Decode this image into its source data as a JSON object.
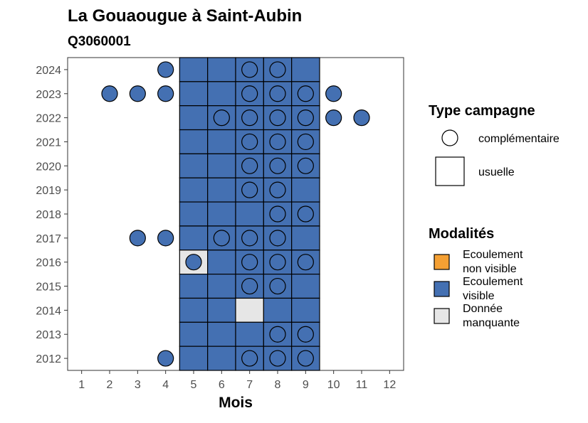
{
  "chart_data": {
    "type": "heatmap",
    "title": "La Gouaougue à Saint-Aubin",
    "subtitle": "Q3060001",
    "xlabel": "Mois",
    "ylabel": "",
    "x_ticks": [
      "1",
      "2",
      "3",
      "4",
      "5",
      "6",
      "7",
      "8",
      "9",
      "10",
      "11",
      "12"
    ],
    "y_ticks": [
      "2012",
      "2013",
      "2014",
      "2015",
      "2016",
      "2017",
      "2018",
      "2019",
      "2020",
      "2021",
      "2022",
      "2023",
      "2024"
    ],
    "xlim": [
      0.5,
      12.5
    ],
    "ylim": [
      2011.5,
      2024.5
    ],
    "grid": false,
    "colors": {
      "ecoulement_non_visible": "#F5A033",
      "ecoulement_visible": "#4470B2",
      "donnee_manquante": "#E6E6E6"
    },
    "legend": {
      "placement": "right",
      "shape_title": "Type campagne",
      "shape_items": [
        {
          "label": "complémentaire",
          "shape": "circle"
        },
        {
          "label": "usuelle",
          "shape": "square"
        }
      ],
      "fill_title": "Modalités",
      "fill_items": [
        {
          "lines": [
            "Ecoulement",
            "non visible"
          ],
          "color": "#F5A033"
        },
        {
          "lines": [
            "Ecoulement",
            "visible"
          ],
          "color": "#4470B2"
        },
        {
          "lines": [
            "Donnée",
            "manquante"
          ],
          "color": "#E6E6E6"
        }
      ]
    },
    "usuelle": [
      {
        "year": 2024,
        "months": {
          "5": "visible",
          "6": "visible",
          "7": "visible",
          "8": "visible",
          "9": "visible"
        }
      },
      {
        "year": 2023,
        "months": {
          "5": "visible",
          "6": "visible",
          "7": "visible",
          "8": "visible",
          "9": "visible"
        }
      },
      {
        "year": 2022,
        "months": {
          "5": "visible",
          "6": "visible",
          "7": "visible",
          "8": "visible",
          "9": "visible"
        }
      },
      {
        "year": 2021,
        "months": {
          "5": "visible",
          "6": "visible",
          "7": "visible",
          "8": "visible",
          "9": "visible"
        }
      },
      {
        "year": 2020,
        "months": {
          "5": "visible",
          "6": "visible",
          "7": "visible",
          "8": "visible",
          "9": "visible"
        }
      },
      {
        "year": 2019,
        "months": {
          "5": "visible",
          "6": "visible",
          "7": "visible",
          "8": "visible",
          "9": "visible"
        }
      },
      {
        "year": 2018,
        "months": {
          "5": "visible",
          "6": "visible",
          "7": "visible",
          "8": "visible",
          "9": "visible"
        }
      },
      {
        "year": 2017,
        "months": {
          "5": "visible",
          "6": "visible",
          "7": "visible",
          "8": "visible",
          "9": "visible"
        }
      },
      {
        "year": 2016,
        "months": {
          "5": "manquante",
          "6": "visible",
          "7": "visible",
          "8": "visible",
          "9": "visible"
        }
      },
      {
        "year": 2015,
        "months": {
          "5": "visible",
          "6": "visible",
          "7": "visible",
          "8": "visible",
          "9": "visible"
        }
      },
      {
        "year": 2014,
        "months": {
          "5": "visible",
          "6": "visible",
          "7": "manquante",
          "8": "visible",
          "9": "visible"
        }
      },
      {
        "year": 2013,
        "months": {
          "5": "visible",
          "6": "visible",
          "7": "visible",
          "8": "visible",
          "9": "visible"
        }
      },
      {
        "year": 2012,
        "months": {
          "5": "visible",
          "6": "visible",
          "7": "visible",
          "8": "visible",
          "9": "visible"
        }
      }
    ],
    "complementaire": [
      {
        "year": 2024,
        "months": [
          4,
          7,
          8
        ]
      },
      {
        "year": 2023,
        "months": [
          2,
          3,
          4,
          7,
          8,
          9,
          10
        ]
      },
      {
        "year": 2022,
        "months": [
          6,
          7,
          8,
          9,
          10,
          11
        ]
      },
      {
        "year": 2021,
        "months": [
          7,
          8,
          9
        ]
      },
      {
        "year": 2020,
        "months": [
          7,
          8,
          9
        ]
      },
      {
        "year": 2019,
        "months": [
          7,
          8
        ]
      },
      {
        "year": 2018,
        "months": [
          8,
          9
        ]
      },
      {
        "year": 2017,
        "months": [
          3,
          4,
          6,
          7,
          8
        ]
      },
      {
        "year": 2016,
        "months": [
          5,
          7,
          8,
          9
        ]
      },
      {
        "year": 2015,
        "months": [
          7,
          8
        ]
      },
      {
        "year": 2014,
        "months": []
      },
      {
        "year": 2013,
        "months": [
          8,
          9
        ]
      },
      {
        "year": 2012,
        "months": [
          4,
          7,
          8,
          9
        ]
      }
    ]
  }
}
